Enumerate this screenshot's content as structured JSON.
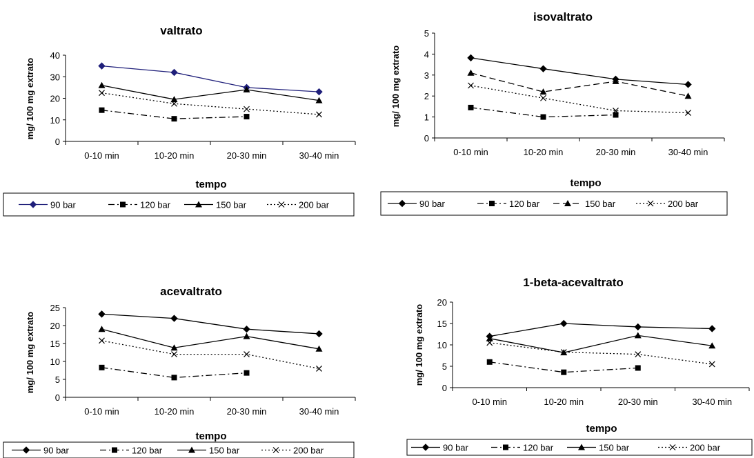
{
  "chart_data": [
    {
      "type": "line",
      "title": "valtrato",
      "xlabel": "tempo",
      "ylabel": "mg/ 100 mg extrato",
      "categories": [
        "0-10 min",
        "10-20 min",
        "20-30 min",
        "30-40 min"
      ],
      "ylim": [
        0,
        40
      ],
      "yticks": [
        0,
        10,
        20,
        30,
        40
      ],
      "legend": "bottom",
      "series": [
        {
          "name": "90 bar",
          "values": [
            35,
            32,
            25,
            23
          ],
          "color": "#1f1f7a",
          "marker": "diamond",
          "dash": "solid"
        },
        {
          "name": "120 bar",
          "values": [
            14.5,
            10.5,
            11.5,
            null
          ],
          "color": "#000000",
          "marker": "square",
          "dash": "dashdot"
        },
        {
          "name": "150 bar",
          "values": [
            26,
            19.5,
            24,
            19
          ],
          "color": "#000000",
          "marker": "triangle",
          "dash": "solid"
        },
        {
          "name": "200 bar",
          "values": [
            22.5,
            17.5,
            15,
            12.5
          ],
          "color": "#000000",
          "marker": "x",
          "dash": "dotted"
        }
      ]
    },
    {
      "type": "line",
      "title": "isovaltrato",
      "xlabel": "tempo",
      "ylabel": "mg/ 100 mg extrato",
      "categories": [
        "0-10 min",
        "10-20 min",
        "20-30 min",
        "30-40 min"
      ],
      "ylim": [
        0,
        5
      ],
      "yticks": [
        0,
        1,
        2,
        3,
        4,
        5
      ],
      "legend": "bottom",
      "series": [
        {
          "name": "90 bar",
          "values": [
            3.82,
            3.3,
            2.8,
            2.55
          ],
          "color": "#000000",
          "marker": "diamond",
          "dash": "solid"
        },
        {
          "name": "120 bar",
          "values": [
            1.45,
            1.0,
            1.1,
            null
          ],
          "color": "#000000",
          "marker": "square",
          "dash": "dashdot"
        },
        {
          "name": "150 bar",
          "values": [
            3.1,
            2.2,
            2.7,
            2.0
          ],
          "color": "#000000",
          "marker": "triangle",
          "dash": "dashed"
        },
        {
          "name": "200 bar",
          "values": [
            2.5,
            1.9,
            1.3,
            1.2
          ],
          "color": "#000000",
          "marker": "x",
          "dash": "dotted"
        }
      ]
    },
    {
      "type": "line",
      "title": "acevaltrato",
      "xlabel": "tempo",
      "ylabel": "mg/ 100 mg extrato",
      "categories": [
        "0-10 min",
        "10-20 min",
        "20-30 min",
        "30-40 min"
      ],
      "ylim": [
        0,
        25
      ],
      "yticks": [
        0,
        5,
        10,
        15,
        20,
        25
      ],
      "legend": "bottom",
      "series": [
        {
          "name": "90 bar",
          "values": [
            23.2,
            22,
            19,
            17.7
          ],
          "color": "#000000",
          "marker": "diamond",
          "dash": "solid"
        },
        {
          "name": "120 bar",
          "values": [
            8.3,
            5.5,
            6.8,
            null
          ],
          "color": "#000000",
          "marker": "square",
          "dash": "dashdot"
        },
        {
          "name": "150 bar",
          "values": [
            19,
            13.8,
            17,
            13.5
          ],
          "color": "#000000",
          "marker": "triangle",
          "dash": "solid"
        },
        {
          "name": "200 bar",
          "values": [
            15.8,
            12,
            12,
            8
          ],
          "color": "#000000",
          "marker": "x",
          "dash": "dotted"
        }
      ]
    },
    {
      "type": "line",
      "title": "1-beta-acevaltrato",
      "xlabel": "tempo",
      "ylabel": "mg/ 100 mg extrato",
      "categories": [
        "0-10 min",
        "10-20 min",
        "20-30 min",
        "30-40 min"
      ],
      "ylim": [
        0,
        20
      ],
      "yticks": [
        0,
        5,
        10,
        15,
        20
      ],
      "legend": "bottom",
      "series": [
        {
          "name": "90 bar",
          "values": [
            12,
            15,
            14.2,
            13.8
          ],
          "color": "#000000",
          "marker": "diamond",
          "dash": "solid"
        },
        {
          "name": "120 bar",
          "values": [
            6,
            3.6,
            4.6,
            null
          ],
          "color": "#000000",
          "marker": "square",
          "dash": "dashdot"
        },
        {
          "name": "150 bar",
          "values": [
            11.5,
            8.2,
            12.2,
            9.8
          ],
          "color": "#000000",
          "marker": "triangle",
          "dash": "solid"
        },
        {
          "name": "200 bar",
          "values": [
            10.5,
            8.3,
            7.8,
            5.5
          ],
          "color": "#000000",
          "marker": "x",
          "dash": "dotted"
        }
      ]
    }
  ]
}
